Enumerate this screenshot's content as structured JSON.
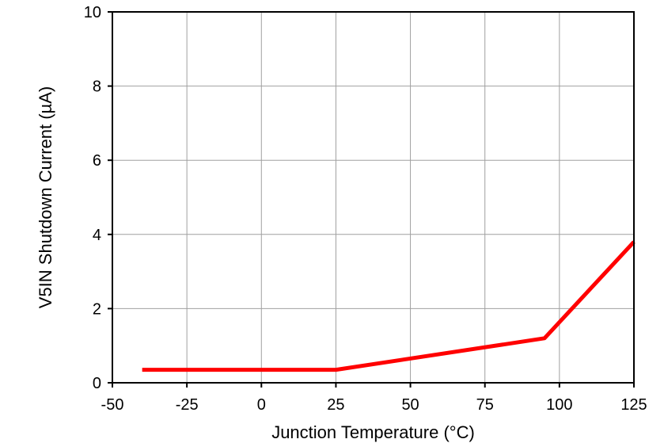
{
  "chart_data": {
    "type": "line",
    "title": "",
    "xlabel": "Junction Temperature (°C)",
    "ylabel": "V5IN Shutdown Current (µA)",
    "xlim": [
      -50,
      125
    ],
    "ylim": [
      0,
      10
    ],
    "xticks": [
      -50,
      -25,
      0,
      25,
      50,
      75,
      100,
      125
    ],
    "yticks": [
      0,
      2,
      4,
      6,
      8,
      10
    ],
    "xtick_labels": [
      "-50",
      "-25",
      "0",
      "25",
      "50",
      "75",
      "100",
      "125"
    ],
    "ytick_labels": [
      "0",
      "2",
      "4",
      "6",
      "8",
      "10"
    ],
    "grid": true,
    "legend": "none",
    "series": [
      {
        "color": "#ff0000",
        "x": [
          -40,
          25,
          95,
          125
        ],
        "y": [
          0.35,
          0.35,
          1.2,
          3.8
        ]
      }
    ]
  }
}
